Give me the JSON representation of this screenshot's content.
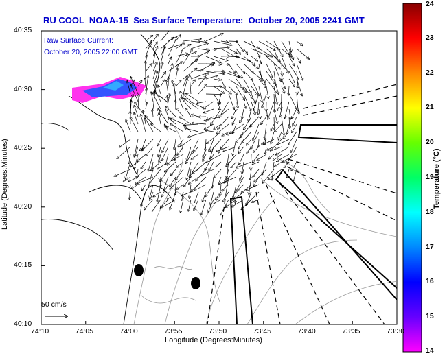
{
  "title": "RU COOL  NOAA-15  Sea Surface Temperature:  October 20, 2005 2241 GMT",
  "subtitle_line1": "Raw Surface Current:",
  "subtitle_line2": "October 20, 2005 22:00 GMT",
  "x_axis_label": "Longitude (Degrees:Minutes)",
  "y_axis_label": "Latitude (Degrees:Minutes)",
  "x_ticks": [
    "74:10",
    "74:05",
    "74:00",
    "73:55",
    "73:50",
    "73:45",
    "73:40",
    "73:35",
    "73:30"
  ],
  "y_ticks": [
    "40:35",
    "40:30",
    "40:25",
    "40:20",
    "40:15",
    "40:10"
  ],
  "colorbar": {
    "label": "Temperature (°C)",
    "ticks": [
      "24",
      "23",
      "22",
      "21",
      "20",
      "19",
      "18",
      "17",
      "16",
      "15",
      "14"
    ],
    "range": [
      14,
      24
    ]
  },
  "scale_vector_label": "50 cm/s",
  "colors": {
    "title": "#0000cc",
    "land_outline": "#000000",
    "bathymetry": "#888888"
  }
}
